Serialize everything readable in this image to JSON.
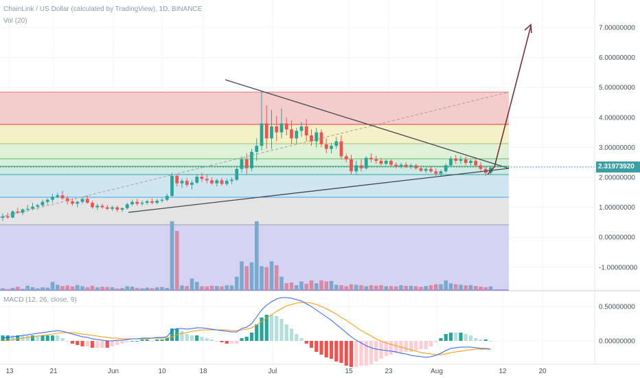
{
  "legend": {
    "title": "ChainLink / US Dollar (calculated by TradingView), 1D, BINANCE",
    "volume": "Vol (20)",
    "macd": "MACD (12, 26, close, 9)"
  },
  "price_badge": "2.31973920",
  "colors": {
    "up": "#26a69a",
    "down": "#ef5350",
    "vol_up": "#77aacc",
    "vol_down": "#d88aa5",
    "macd_line": "#2962ff",
    "signal_line": "#ff9800",
    "trend": "#434651",
    "arrow": "#7a2e3a"
  },
  "chart_data": [
    {
      "type": "candlestick",
      "title": "ChainLink / US Dollar (calculated by TradingView), 1D, BINANCE",
      "y_ticks": [
        "7.00000000",
        "6.00000000",
        "5.00000000",
        "4.00000000",
        "3.00000000",
        "2.00000000",
        "1.00000000",
        "0.00000000",
        "-1.00000000"
      ],
      "x_ticks": [
        "13",
        "21",
        "Jun",
        "10",
        "18",
        "Jul",
        "15",
        "23",
        "Aug",
        "12",
        "20"
      ],
      "last_price": 2.3197392,
      "candles": [
        {
          "o": 0.65,
          "h": 0.8,
          "l": 0.55,
          "c": 0.7
        },
        {
          "o": 0.7,
          "h": 0.82,
          "l": 0.62,
          "c": 0.66
        },
        {
          "o": 0.66,
          "h": 0.9,
          "l": 0.63,
          "c": 0.86
        },
        {
          "o": 0.86,
          "h": 0.98,
          "l": 0.78,
          "c": 0.82
        },
        {
          "o": 0.82,
          "h": 0.96,
          "l": 0.75,
          "c": 0.93
        },
        {
          "o": 0.93,
          "h": 1.08,
          "l": 0.85,
          "c": 0.95
        },
        {
          "o": 0.95,
          "h": 1.15,
          "l": 0.9,
          "c": 1.02
        },
        {
          "o": 1.02,
          "h": 1.12,
          "l": 0.92,
          "c": 1.07
        },
        {
          "o": 1.07,
          "h": 1.25,
          "l": 1.0,
          "c": 1.18
        },
        {
          "o": 1.18,
          "h": 1.3,
          "l": 1.1,
          "c": 1.25
        },
        {
          "o": 1.25,
          "h": 1.45,
          "l": 1.15,
          "c": 1.35
        },
        {
          "o": 1.35,
          "h": 1.48,
          "l": 1.3,
          "c": 1.4
        },
        {
          "o": 1.4,
          "h": 1.55,
          "l": 1.25,
          "c": 1.3
        },
        {
          "o": 1.3,
          "h": 1.38,
          "l": 1.1,
          "c": 1.2
        },
        {
          "o": 1.2,
          "h": 1.3,
          "l": 1.05,
          "c": 1.12
        },
        {
          "o": 1.12,
          "h": 1.22,
          "l": 1.0,
          "c": 1.18
        },
        {
          "o": 1.18,
          "h": 1.35,
          "l": 1.12,
          "c": 1.28
        },
        {
          "o": 1.28,
          "h": 1.4,
          "l": 1.12,
          "c": 1.15
        },
        {
          "o": 1.15,
          "h": 1.22,
          "l": 0.95,
          "c": 1.0
        },
        {
          "o": 1.0,
          "h": 1.12,
          "l": 0.92,
          "c": 1.05
        },
        {
          "o": 1.05,
          "h": 1.12,
          "l": 0.95,
          "c": 1.0
        },
        {
          "o": 1.0,
          "h": 1.08,
          "l": 0.9,
          "c": 0.95
        },
        {
          "o": 0.95,
          "h": 1.05,
          "l": 0.88,
          "c": 1.0
        },
        {
          "o": 1.0,
          "h": 1.05,
          "l": 0.85,
          "c": 0.92
        },
        {
          "o": 0.92,
          "h": 1.0,
          "l": 0.85,
          "c": 0.97
        },
        {
          "o": 0.97,
          "h": 1.15,
          "l": 0.92,
          "c": 1.1
        },
        {
          "o": 1.1,
          "h": 1.25,
          "l": 1.05,
          "c": 1.18
        },
        {
          "o": 1.18,
          "h": 1.28,
          "l": 1.05,
          "c": 1.12
        },
        {
          "o": 1.12,
          "h": 1.22,
          "l": 1.05,
          "c": 1.15
        },
        {
          "o": 1.15,
          "h": 1.25,
          "l": 1.08,
          "c": 1.2
        },
        {
          "o": 1.2,
          "h": 1.3,
          "l": 1.1,
          "c": 1.15
        },
        {
          "o": 1.15,
          "h": 1.28,
          "l": 1.1,
          "c": 1.22
        },
        {
          "o": 1.22,
          "h": 1.32,
          "l": 1.15,
          "c": 1.25
        },
        {
          "o": 1.25,
          "h": 1.45,
          "l": 1.2,
          "c": 1.38
        },
        {
          "o": 1.38,
          "h": 2.15,
          "l": 1.35,
          "c": 2.05
        },
        {
          "o": 2.05,
          "h": 2.1,
          "l": 1.7,
          "c": 1.8
        },
        {
          "o": 1.8,
          "h": 1.95,
          "l": 1.65,
          "c": 1.88
        },
        {
          "o": 1.88,
          "h": 1.98,
          "l": 1.68,
          "c": 1.75
        },
        {
          "o": 1.75,
          "h": 1.9,
          "l": 1.6,
          "c": 1.82
        },
        {
          "o": 1.82,
          "h": 2.1,
          "l": 1.78,
          "c": 2.02
        },
        {
          "o": 2.02,
          "h": 2.15,
          "l": 1.85,
          "c": 1.95
        },
        {
          "o": 1.95,
          "h": 2.08,
          "l": 1.8,
          "c": 1.9
        },
        {
          "o": 1.9,
          "h": 2.0,
          "l": 1.75,
          "c": 1.8
        },
        {
          "o": 1.8,
          "h": 1.95,
          "l": 1.7,
          "c": 1.9
        },
        {
          "o": 1.9,
          "h": 1.98,
          "l": 1.72,
          "c": 1.78
        },
        {
          "o": 1.78,
          "h": 1.95,
          "l": 1.72,
          "c": 1.88
        },
        {
          "o": 1.88,
          "h": 2.0,
          "l": 1.78,
          "c": 1.92
        },
        {
          "o": 1.92,
          "h": 2.35,
          "l": 1.88,
          "c": 2.28
        },
        {
          "o": 2.28,
          "h": 2.7,
          "l": 2.15,
          "c": 2.6
        },
        {
          "o": 2.6,
          "h": 2.8,
          "l": 2.1,
          "c": 2.3
        },
        {
          "o": 2.3,
          "h": 2.95,
          "l": 2.2,
          "c": 2.85
        },
        {
          "o": 2.85,
          "h": 3.3,
          "l": 2.55,
          "c": 3.05
        },
        {
          "o": 3.05,
          "h": 4.85,
          "l": 2.9,
          "c": 3.8
        },
        {
          "o": 3.8,
          "h": 4.4,
          "l": 2.95,
          "c": 3.3
        },
        {
          "o": 3.3,
          "h": 4.25,
          "l": 2.95,
          "c": 3.7
        },
        {
          "o": 3.7,
          "h": 4.05,
          "l": 3.2,
          "c": 3.5
        },
        {
          "o": 3.5,
          "h": 4.3,
          "l": 3.3,
          "c": 3.8
        },
        {
          "o": 3.8,
          "h": 4.0,
          "l": 3.4,
          "c": 3.6
        },
        {
          "o": 3.6,
          "h": 3.9,
          "l": 3.1,
          "c": 3.3
        },
        {
          "o": 3.3,
          "h": 3.65,
          "l": 3.1,
          "c": 3.55
        },
        {
          "o": 3.55,
          "h": 3.85,
          "l": 3.35,
          "c": 3.7
        },
        {
          "o": 3.7,
          "h": 3.95,
          "l": 3.2,
          "c": 3.4
        },
        {
          "o": 3.4,
          "h": 3.6,
          "l": 3.05,
          "c": 3.2
        },
        {
          "o": 3.2,
          "h": 3.65,
          "l": 3.0,
          "c": 3.5
        },
        {
          "o": 3.5,
          "h": 3.6,
          "l": 3.0,
          "c": 3.1
        },
        {
          "o": 3.1,
          "h": 3.3,
          "l": 2.8,
          "c": 2.95
        },
        {
          "o": 2.95,
          "h": 3.15,
          "l": 2.8,
          "c": 3.05
        },
        {
          "o": 3.05,
          "h": 3.35,
          "l": 2.95,
          "c": 3.2
        },
        {
          "o": 3.2,
          "h": 3.4,
          "l": 2.6,
          "c": 2.7
        },
        {
          "o": 2.7,
          "h": 2.8,
          "l": 2.5,
          "c": 2.6
        },
        {
          "o": 2.6,
          "h": 2.75,
          "l": 2.1,
          "c": 2.2
        },
        {
          "o": 2.2,
          "h": 2.55,
          "l": 2.1,
          "c": 2.4
        },
        {
          "o": 2.4,
          "h": 2.6,
          "l": 2.2,
          "c": 2.3
        },
        {
          "o": 2.3,
          "h": 2.7,
          "l": 2.25,
          "c": 2.65
        },
        {
          "o": 2.65,
          "h": 2.8,
          "l": 2.5,
          "c": 2.6
        },
        {
          "o": 2.6,
          "h": 2.72,
          "l": 2.45,
          "c": 2.55
        },
        {
          "o": 2.55,
          "h": 2.65,
          "l": 2.4,
          "c": 2.45
        },
        {
          "o": 2.45,
          "h": 2.6,
          "l": 2.4,
          "c": 2.55
        },
        {
          "o": 2.55,
          "h": 2.6,
          "l": 2.35,
          "c": 2.42
        },
        {
          "o": 2.42,
          "h": 2.5,
          "l": 2.3,
          "c": 2.35
        },
        {
          "o": 2.35,
          "h": 2.48,
          "l": 2.3,
          "c": 2.42
        },
        {
          "o": 2.42,
          "h": 2.5,
          "l": 2.3,
          "c": 2.35
        },
        {
          "o": 2.35,
          "h": 2.45,
          "l": 2.28,
          "c": 2.4
        },
        {
          "o": 2.4,
          "h": 2.45,
          "l": 2.25,
          "c": 2.3
        },
        {
          "o": 2.3,
          "h": 2.38,
          "l": 2.18,
          "c": 2.22
        },
        {
          "o": 2.22,
          "h": 2.32,
          "l": 2.15,
          "c": 2.28
        },
        {
          "o": 2.28,
          "h": 2.35,
          "l": 2.15,
          "c": 2.2
        },
        {
          "o": 2.2,
          "h": 2.3,
          "l": 2.05,
          "c": 2.12
        },
        {
          "o": 2.12,
          "h": 2.25,
          "l": 2.05,
          "c": 2.2
        },
        {
          "o": 2.2,
          "h": 2.45,
          "l": 2.15,
          "c": 2.4
        },
        {
          "o": 2.4,
          "h": 2.7,
          "l": 2.35,
          "c": 2.62
        },
        {
          "o": 2.62,
          "h": 2.75,
          "l": 2.45,
          "c": 2.55
        },
        {
          "o": 2.55,
          "h": 2.72,
          "l": 2.45,
          "c": 2.6
        },
        {
          "o": 2.6,
          "h": 2.7,
          "l": 2.4,
          "c": 2.48
        },
        {
          "o": 2.48,
          "h": 2.6,
          "l": 2.4,
          "c": 2.55
        },
        {
          "o": 2.55,
          "h": 2.62,
          "l": 2.35,
          "c": 2.4
        },
        {
          "o": 2.4,
          "h": 2.5,
          "l": 2.2,
          "c": 2.28
        },
        {
          "o": 2.28,
          "h": 2.35,
          "l": 2.05,
          "c": 2.15
        },
        {
          "o": 2.15,
          "h": 2.35,
          "l": 2.1,
          "c": 2.32
        }
      ],
      "volume": [
        18,
        10,
        22,
        35,
        12,
        45,
        30,
        18,
        28,
        25,
        85,
        55,
        42,
        48,
        38,
        52,
        40,
        30,
        45,
        28,
        35,
        32,
        28,
        15,
        20,
        40,
        35,
        22,
        18,
        25,
        20,
        28,
        32,
        22,
        720,
        620,
        48,
        42,
        120,
        85,
        40,
        38,
        45,
        42,
        38,
        50,
        48,
        140,
        300,
        250,
        290,
        720,
        250,
        240,
        300,
        260,
        140,
        72,
        80,
        50,
        90,
        65,
        100,
        70,
        100,
        90,
        95,
        55,
        50,
        40,
        60,
        55,
        50,
        40,
        50,
        45,
        50,
        40,
        42,
        38,
        50,
        44,
        45,
        40,
        35,
        42,
        50,
        60,
        60,
        100,
        70,
        60,
        55,
        48,
        52,
        42,
        36,
        30,
        38
      ]
    },
    {
      "type": "line",
      "title": "MACD (12, 26, close, 9)",
      "y_ticks": [
        "0.50000000",
        "0.00000000"
      ],
      "series": [
        {
          "name": "MACD",
          "values": [
            0.04,
            0.05,
            0.06,
            0.07,
            0.08,
            0.09,
            0.1,
            0.11,
            0.12,
            0.13,
            0.14,
            0.15,
            0.14,
            0.12,
            0.1,
            0.08,
            0.06,
            0.05,
            0.03,
            0.02,
            0.01,
            0.0,
            0.0,
            0.01,
            0.01,
            0.02,
            0.03,
            0.03,
            0.04,
            0.04,
            0.04,
            0.05,
            0.05,
            0.06,
            0.15,
            0.18,
            0.18,
            0.17,
            0.18,
            0.19,
            0.19,
            0.18,
            0.17,
            0.16,
            0.15,
            0.14,
            0.13,
            0.13,
            0.18,
            0.2,
            0.25,
            0.35,
            0.45,
            0.52,
            0.57,
            0.61,
            0.63,
            0.63,
            0.62,
            0.6,
            0.58,
            0.54,
            0.5,
            0.45,
            0.4,
            0.35,
            0.3,
            0.24,
            0.18,
            0.12,
            0.06,
            0.01,
            -0.03,
            -0.07,
            -0.1,
            -0.12,
            -0.13,
            -0.14,
            -0.15,
            -0.16,
            -0.18,
            -0.19,
            -0.21,
            -0.22,
            -0.23,
            -0.24,
            -0.23,
            -0.21,
            -0.18,
            -0.14,
            -0.11,
            -0.1,
            -0.09,
            -0.09,
            -0.09,
            -0.1,
            -0.11,
            -0.11,
            -0.12
          ]
        },
        {
          "name": "Signal",
          "values": [
            0.0,
            0.01,
            0.02,
            0.03,
            0.04,
            0.05,
            0.06,
            0.07,
            0.08,
            0.09,
            0.1,
            0.11,
            0.12,
            0.12,
            0.12,
            0.11,
            0.1,
            0.09,
            0.08,
            0.07,
            0.06,
            0.05,
            0.04,
            0.04,
            0.03,
            0.03,
            0.03,
            0.03,
            0.03,
            0.03,
            0.04,
            0.04,
            0.04,
            0.04,
            0.06,
            0.09,
            0.11,
            0.12,
            0.14,
            0.15,
            0.16,
            0.16,
            0.16,
            0.16,
            0.16,
            0.16,
            0.15,
            0.15,
            0.16,
            0.17,
            0.19,
            0.23,
            0.28,
            0.33,
            0.38,
            0.43,
            0.47,
            0.51,
            0.53,
            0.55,
            0.56,
            0.56,
            0.55,
            0.53,
            0.5,
            0.47,
            0.43,
            0.39,
            0.34,
            0.3,
            0.25,
            0.2,
            0.15,
            0.11,
            0.07,
            0.03,
            0.0,
            -0.03,
            -0.05,
            -0.07,
            -0.09,
            -0.11,
            -0.13,
            -0.15,
            -0.17,
            -0.18,
            -0.19,
            -0.2,
            -0.2,
            -0.19,
            -0.17,
            -0.16,
            -0.15,
            -0.14,
            -0.13,
            -0.12,
            -0.12,
            -0.12,
            -0.12
          ]
        }
      ],
      "x_ticks": [
        "13",
        "21",
        "Jun",
        "10",
        "18",
        "Jul",
        "15",
        "23",
        "Aug",
        "12",
        "20"
      ]
    }
  ]
}
